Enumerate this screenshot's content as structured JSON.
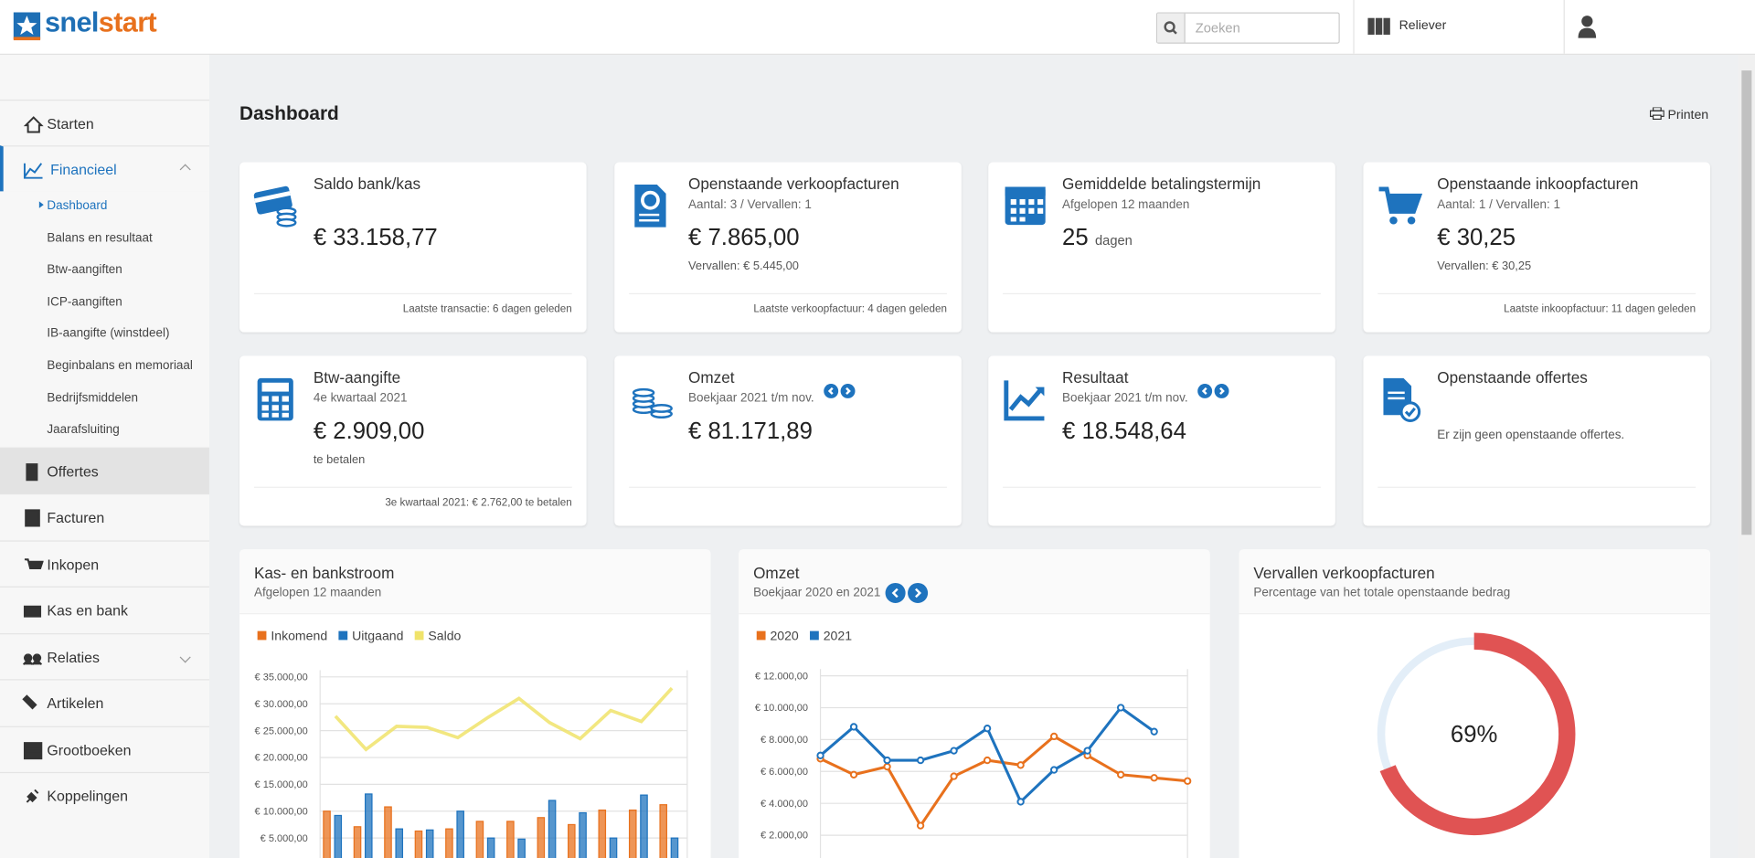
{
  "header": {
    "logo_a": "snel",
    "logo_b": "start",
    "search_placeholder": "Zoeken",
    "company": "Reliever"
  },
  "sidebar": {
    "items": [
      "Starten",
      "Financieel",
      "Offertes",
      "Facturen",
      "Inkopen",
      "Kas en bank",
      "Relaties",
      "Artikelen",
      "Grootboeken",
      "Koppelingen"
    ],
    "sub_items": [
      "Dashboard",
      "Balans en resultaat",
      "Btw-aangiften",
      "ICP-aangiften",
      "IB-aangifte (winstdeel)",
      "Beginbalans en memoriaal",
      "Bedrijfsmiddelen",
      "Jaarafsluiting"
    ]
  },
  "page": {
    "title": "Dashboard",
    "print": "Printen"
  },
  "cards": [
    {
      "title": "Saldo bank/kas",
      "value": "€ 33.158,77",
      "footer": "Laatste transactie: 6 dagen geleden"
    },
    {
      "title": "Openstaande verkoopfacturen",
      "subtitle": "Aantal: 3 / Vervallen: 1",
      "value": "€ 7.865,00",
      "note": "Vervallen: € 5.445,00",
      "footer": "Laatste verkoopfactuur: 4 dagen geleden"
    },
    {
      "title": "Gemiddelde betalingstermijn",
      "subtitle": "Afgelopen 12 maanden",
      "value": "25",
      "unit": "dagen"
    },
    {
      "title": "Openstaande inkoopfacturen",
      "subtitle": "Aantal: 1 / Vervallen: 1",
      "value": "€ 30,25",
      "note": "Vervallen: € 30,25",
      "footer": "Laatste inkoopfactuur: 11 dagen geleden"
    },
    {
      "title": "Btw-aangifte",
      "subtitle": "4e kwartaal 2021",
      "value": "€ 2.909,00",
      "note": "te betalen",
      "footer": "3e kwartaal 2021: € 2.762,00 te betalen"
    },
    {
      "title": "Omzet",
      "subtitle": "Boekjaar 2021 t/m nov.",
      "value": "€ 81.171,89"
    },
    {
      "title": "Resultaat",
      "subtitle": "Boekjaar 2021 t/m nov.",
      "value": "€ 18.548,64"
    },
    {
      "title": "Openstaande offertes",
      "message": "Er zijn geen openstaande offertes."
    }
  ],
  "chart_data": [
    {
      "type": "bar",
      "title": "Kas- en bankstroom",
      "subtitle": "Afgelopen 12 maanden",
      "grid": true,
      "ylim": [
        0,
        35000
      ],
      "yticks": [
        {
          "value": 5000,
          "label": "€ 5.000,00"
        },
        {
          "value": 10000,
          "label": "€ 10.000,00"
        },
        {
          "value": 15000,
          "label": "€ 15.000,00"
        },
        {
          "value": 20000,
          "label": "€ 20.000,00"
        },
        {
          "value": 25000,
          "label": "€ 25.000,00"
        },
        {
          "value": 30000,
          "label": "€ 30.000,00"
        },
        {
          "value": 35000,
          "label": "€ 35.000,00"
        }
      ],
      "series": [
        {
          "name": "Inkomend",
          "color": "#e8711d",
          "values": [
            10000,
            7100,
            10800,
            6300,
            6700,
            8100,
            8100,
            8800,
            7500,
            10200,
            10200,
            11200
          ]
        },
        {
          "name": "Uitgaand",
          "color": "#1e73be",
          "values": [
            9200,
            13200,
            6700,
            6500,
            10000,
            5000,
            4800,
            12000,
            9700,
            5000,
            13000,
            5000
          ]
        },
        {
          "name": "Saldo",
          "color": "#f0e36a",
          "type": "line",
          "values": [
            27700,
            21500,
            25800,
            25600,
            23700,
            27500,
            31000,
            26500,
            23500,
            28750,
            26700,
            32900
          ]
        }
      ]
    },
    {
      "type": "line",
      "title": "Omzet",
      "subtitle": "Boekjaar 2020 en 2021",
      "grid": true,
      "ylim": [
        0,
        12000
      ],
      "yticks": [
        {
          "value": 2000,
          "label": "€ 2.000,00"
        },
        {
          "value": 4000,
          "label": "€ 4.000,00"
        },
        {
          "value": 6000,
          "label": "€ 6.000,00"
        },
        {
          "value": 8000,
          "label": "€ 8.000,00"
        },
        {
          "value": 10000,
          "label": "€ 10.000,00"
        },
        {
          "value": 12000,
          "label": "€ 12.000,00"
        }
      ],
      "series": [
        {
          "name": "2020",
          "color": "#e8711d",
          "values": [
            6800,
            5800,
            6300,
            2600,
            5700,
            6700,
            6400,
            8200,
            7000,
            5800,
            5600,
            5400
          ]
        },
        {
          "name": "2021",
          "color": "#1e73be",
          "values": [
            7000,
            8800,
            6700,
            6700,
            7300,
            8700,
            4100,
            6100,
            7300,
            10000,
            8500,
            null
          ]
        }
      ]
    },
    {
      "type": "donut",
      "title": "Vervallen verkoopfacturen",
      "subtitle": "Percentage van het totale openstaande bedrag",
      "values": [
        69
      ],
      "value_labels": [
        "69%"
      ],
      "color": "#e05353",
      "track_color": "#e3eef8"
    }
  ]
}
